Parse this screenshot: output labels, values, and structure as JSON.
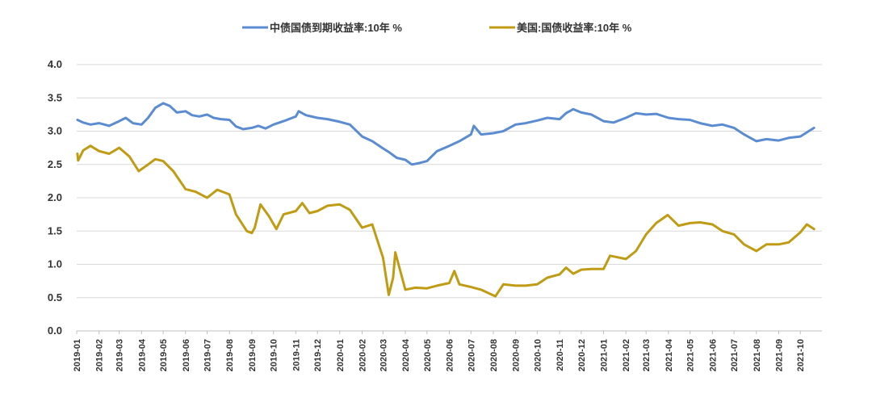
{
  "chart_data": {
    "type": "line",
    "title": "",
    "xlabel": "",
    "ylabel": "",
    "ylim": [
      0,
      4
    ],
    "yticks": [
      "0.0",
      "0.5",
      "1.0",
      "1.5",
      "2.0",
      "2.5",
      "3.0",
      "3.5",
      "4.0"
    ],
    "grid": true,
    "legend": "top-center",
    "categories": [
      "2019-01",
      "2019-02",
      "2019-03",
      "2019-04",
      "2019-05",
      "2019-06",
      "2019-07",
      "2019-08",
      "2019-09",
      "2019-10",
      "2019-11",
      "2019-12",
      "2020-01",
      "2020-02",
      "2020-03",
      "2020-04",
      "2020-05",
      "2020-06",
      "2020-07",
      "2020-08",
      "2020-09",
      "2020-10",
      "2020-11",
      "2020-12",
      "2021-01",
      "2021-02",
      "2021-03",
      "2021-04",
      "2021-05",
      "2021-06",
      "2021-07",
      "2021-08",
      "2021-09",
      "2021-10"
    ],
    "series": [
      {
        "name": "中债国债到期收益率:10年 %",
        "color": "#5b8bd0",
        "points": [
          [
            "2019-01-02",
            3.17
          ],
          [
            "2019-01-10",
            3.13
          ],
          [
            "2019-01-20",
            3.1
          ],
          [
            "2019-02-01",
            3.12
          ],
          [
            "2019-02-15",
            3.08
          ],
          [
            "2019-03-01",
            3.15
          ],
          [
            "2019-03-10",
            3.2
          ],
          [
            "2019-03-20",
            3.12
          ],
          [
            "2019-04-01",
            3.1
          ],
          [
            "2019-04-10",
            3.2
          ],
          [
            "2019-04-20",
            3.35
          ],
          [
            "2019-05-01",
            3.42
          ],
          [
            "2019-05-10",
            3.38
          ],
          [
            "2019-05-20",
            3.28
          ],
          [
            "2019-06-01",
            3.3
          ],
          [
            "2019-06-10",
            3.24
          ],
          [
            "2019-06-20",
            3.22
          ],
          [
            "2019-07-01",
            3.25
          ],
          [
            "2019-07-10",
            3.2
          ],
          [
            "2019-07-20",
            3.18
          ],
          [
            "2019-08-01",
            3.17
          ],
          [
            "2019-08-10",
            3.07
          ],
          [
            "2019-08-20",
            3.03
          ],
          [
            "2019-09-01",
            3.05
          ],
          [
            "2019-09-10",
            3.08
          ],
          [
            "2019-09-20",
            3.04
          ],
          [
            "2019-10-01",
            3.1
          ],
          [
            "2019-10-15",
            3.15
          ],
          [
            "2019-11-01",
            3.22
          ],
          [
            "2019-11-05",
            3.3
          ],
          [
            "2019-11-15",
            3.24
          ],
          [
            "2019-12-01",
            3.2
          ],
          [
            "2019-12-15",
            3.18
          ],
          [
            "2020-01-01",
            3.14
          ],
          [
            "2020-01-15",
            3.1
          ],
          [
            "2020-02-01",
            2.92
          ],
          [
            "2020-02-15",
            2.85
          ],
          [
            "2020-03-01",
            2.74
          ],
          [
            "2020-03-10",
            2.68
          ],
          [
            "2020-03-20",
            2.6
          ],
          [
            "2020-04-01",
            2.57
          ],
          [
            "2020-04-10",
            2.5
          ],
          [
            "2020-04-20",
            2.52
          ],
          [
            "2020-05-01",
            2.55
          ],
          [
            "2020-05-15",
            2.7
          ],
          [
            "2020-06-01",
            2.78
          ],
          [
            "2020-06-15",
            2.85
          ],
          [
            "2020-07-01",
            2.95
          ],
          [
            "2020-07-05",
            3.08
          ],
          [
            "2020-07-15",
            2.95
          ],
          [
            "2020-08-01",
            2.97
          ],
          [
            "2020-08-15",
            3.0
          ],
          [
            "2020-09-01",
            3.1
          ],
          [
            "2020-09-15",
            3.12
          ],
          [
            "2020-10-01",
            3.16
          ],
          [
            "2020-10-15",
            3.2
          ],
          [
            "2020-11-01",
            3.18
          ],
          [
            "2020-11-10",
            3.27
          ],
          [
            "2020-11-20",
            3.33
          ],
          [
            "2020-12-01",
            3.28
          ],
          [
            "2020-12-15",
            3.25
          ],
          [
            "2021-01-01",
            3.15
          ],
          [
            "2021-01-15",
            3.13
          ],
          [
            "2021-02-01",
            3.2
          ],
          [
            "2021-02-15",
            3.27
          ],
          [
            "2021-03-01",
            3.25
          ],
          [
            "2021-03-15",
            3.26
          ],
          [
            "2021-04-01",
            3.2
          ],
          [
            "2021-04-15",
            3.18
          ],
          [
            "2021-05-01",
            3.17
          ],
          [
            "2021-05-15",
            3.12
          ],
          [
            "2021-06-01",
            3.08
          ],
          [
            "2021-06-15",
            3.1
          ],
          [
            "2021-07-01",
            3.05
          ],
          [
            "2021-07-15",
            2.95
          ],
          [
            "2021-08-01",
            2.85
          ],
          [
            "2021-08-15",
            2.88
          ],
          [
            "2021-09-01",
            2.86
          ],
          [
            "2021-09-15",
            2.9
          ],
          [
            "2021-10-01",
            2.92
          ],
          [
            "2021-10-20",
            3.05
          ]
        ]
      },
      {
        "name": "美国:国债收益率:10年 %",
        "color": "#c09b14",
        "points": [
          [
            "2019-01-02",
            2.66
          ],
          [
            "2019-01-03",
            2.56
          ],
          [
            "2019-01-10",
            2.71
          ],
          [
            "2019-01-20",
            2.78
          ],
          [
            "2019-02-01",
            2.7
          ],
          [
            "2019-02-15",
            2.66
          ],
          [
            "2019-03-01",
            2.75
          ],
          [
            "2019-03-15",
            2.62
          ],
          [
            "2019-03-28",
            2.4
          ],
          [
            "2019-04-10",
            2.5
          ],
          [
            "2019-04-20",
            2.58
          ],
          [
            "2019-05-01",
            2.55
          ],
          [
            "2019-05-15",
            2.4
          ],
          [
            "2019-06-01",
            2.13
          ],
          [
            "2019-06-15",
            2.09
          ],
          [
            "2019-07-01",
            2.0
          ],
          [
            "2019-07-15",
            2.12
          ],
          [
            "2019-08-01",
            2.05
          ],
          [
            "2019-08-10",
            1.75
          ],
          [
            "2019-08-25",
            1.5
          ],
          [
            "2019-09-01",
            1.47
          ],
          [
            "2019-09-05",
            1.55
          ],
          [
            "2019-09-13",
            1.9
          ],
          [
            "2019-09-25",
            1.72
          ],
          [
            "2019-10-05",
            1.53
          ],
          [
            "2019-10-15",
            1.75
          ],
          [
            "2019-11-01",
            1.8
          ],
          [
            "2019-11-10",
            1.92
          ],
          [
            "2019-11-20",
            1.77
          ],
          [
            "2019-12-01",
            1.8
          ],
          [
            "2019-12-15",
            1.88
          ],
          [
            "2020-01-01",
            1.9
          ],
          [
            "2020-01-15",
            1.82
          ],
          [
            "2020-02-01",
            1.55
          ],
          [
            "2020-02-15",
            1.6
          ],
          [
            "2020-03-01",
            1.1
          ],
          [
            "2020-03-09",
            0.54
          ],
          [
            "2020-03-15",
            0.8
          ],
          [
            "2020-03-18",
            1.18
          ],
          [
            "2020-04-01",
            0.62
          ],
          [
            "2020-04-15",
            0.65
          ],
          [
            "2020-05-01",
            0.64
          ],
          [
            "2020-05-15",
            0.68
          ],
          [
            "2020-06-01",
            0.72
          ],
          [
            "2020-06-08",
            0.9
          ],
          [
            "2020-06-15",
            0.7
          ],
          [
            "2020-07-01",
            0.66
          ],
          [
            "2020-07-15",
            0.62
          ],
          [
            "2020-08-04",
            0.52
          ],
          [
            "2020-08-15",
            0.7
          ],
          [
            "2020-09-01",
            0.68
          ],
          [
            "2020-09-15",
            0.68
          ],
          [
            "2020-10-01",
            0.7
          ],
          [
            "2020-10-15",
            0.8
          ],
          [
            "2020-11-01",
            0.85
          ],
          [
            "2020-11-10",
            0.95
          ],
          [
            "2020-11-20",
            0.86
          ],
          [
            "2020-12-01",
            0.92
          ],
          [
            "2020-12-15",
            0.93
          ],
          [
            "2021-01-01",
            0.93
          ],
          [
            "2021-01-10",
            1.13
          ],
          [
            "2021-02-01",
            1.08
          ],
          [
            "2021-02-15",
            1.2
          ],
          [
            "2021-03-01",
            1.45
          ],
          [
            "2021-03-15",
            1.62
          ],
          [
            "2021-03-31",
            1.74
          ],
          [
            "2021-04-15",
            1.58
          ],
          [
            "2021-05-01",
            1.62
          ],
          [
            "2021-05-15",
            1.63
          ],
          [
            "2021-06-01",
            1.6
          ],
          [
            "2021-06-15",
            1.5
          ],
          [
            "2021-07-01",
            1.45
          ],
          [
            "2021-07-15",
            1.3
          ],
          [
            "2021-08-01",
            1.2
          ],
          [
            "2021-08-15",
            1.3
          ],
          [
            "2021-09-01",
            1.3
          ],
          [
            "2021-09-15",
            1.33
          ],
          [
            "2021-10-01",
            1.48
          ],
          [
            "2021-10-10",
            1.6
          ],
          [
            "2021-10-20",
            1.53
          ]
        ]
      }
    ]
  }
}
